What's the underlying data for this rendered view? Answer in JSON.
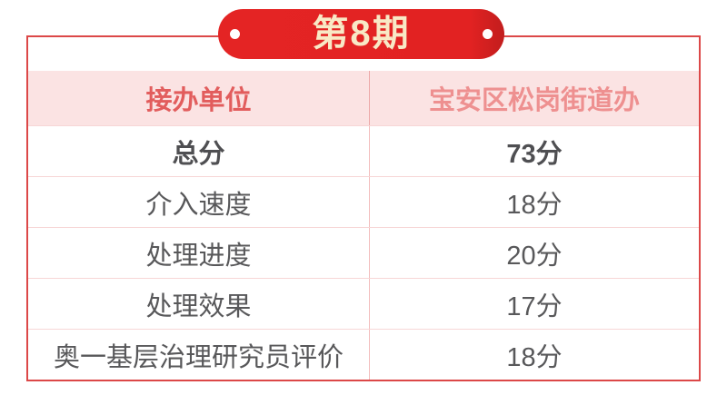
{
  "banner": {
    "label": "第8期"
  },
  "table": {
    "header": {
      "left": "接办单位",
      "right": "宝安区松岗街道办"
    },
    "rows": [
      {
        "label": "总分",
        "value": "73分"
      },
      {
        "label": "介入速度",
        "value": "18分"
      },
      {
        "label": "处理进度",
        "value": "20分"
      },
      {
        "label": "处理效果",
        "value": "17分"
      },
      {
        "label": "奥一基层治理研究员评价",
        "value": "18分"
      }
    ]
  },
  "colors": {
    "ribbon_red": "#e22222",
    "frame_border": "#dc4848",
    "header_bg": "#fbe3e3",
    "header_left_text": "#e25d5d",
    "header_right_text": "#ee9090",
    "body_text": "#58585a",
    "divider": "#f7d6d6",
    "banner_text": "#f8e9c6"
  },
  "chart_data": {
    "type": "table",
    "title": "第8期",
    "columns": [
      "接办单位",
      "宝安区松岗街道办"
    ],
    "rows": [
      [
        "总分",
        "73分"
      ],
      [
        "介入速度",
        "18分"
      ],
      [
        "处理进度",
        "20分"
      ],
      [
        "处理效果",
        "17分"
      ],
      [
        "奥一基层治理研究员评价",
        "18分"
      ]
    ],
    "scores": {
      "总分": 73,
      "介入速度": 18,
      "处理进度": 20,
      "处理效果": 17,
      "奥一基层治理研究员评价": 18
    }
  }
}
